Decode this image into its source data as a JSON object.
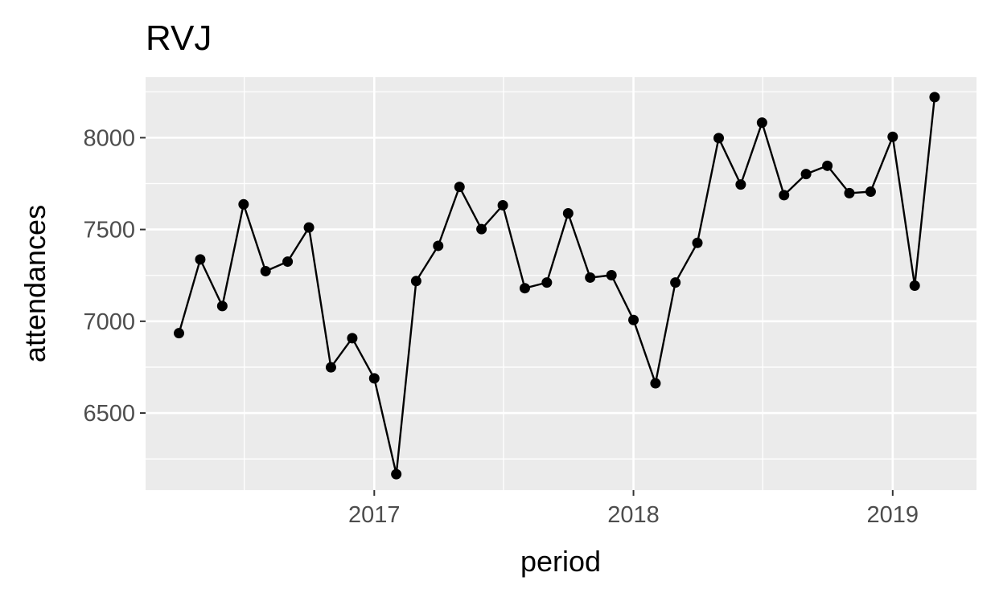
{
  "chart_data": {
    "type": "line",
    "title": "RVJ",
    "xlabel": "period",
    "ylabel": "attendances",
    "x_ticks": [
      "2017",
      "2018",
      "2019"
    ],
    "y_ticks": [
      "6500",
      "7000",
      "7500",
      "8000"
    ],
    "xlim": [
      "2016-02-14",
      "2019-04-29"
    ],
    "ylim": [
      6080,
      8330
    ],
    "grid": true,
    "legend": "none",
    "colors": {
      "panel": "#ebebeb",
      "grid": "#ffffff",
      "line": "#000000",
      "tick_text": "#4d4d4d"
    },
    "series": [
      {
        "points": [
          {
            "x": "2016-04-01",
            "y": 6935
          },
          {
            "x": "2016-05-01",
            "y": 7337
          },
          {
            "x": "2016-06-01",
            "y": 7083
          },
          {
            "x": "2016-07-01",
            "y": 7637
          },
          {
            "x": "2016-08-01",
            "y": 7273
          },
          {
            "x": "2016-09-01",
            "y": 7325
          },
          {
            "x": "2016-10-01",
            "y": 7511
          },
          {
            "x": "2016-11-01",
            "y": 6749
          },
          {
            "x": "2016-12-01",
            "y": 6908
          },
          {
            "x": "2017-01-01",
            "y": 6689
          },
          {
            "x": "2017-02-01",
            "y": 6167
          },
          {
            "x": "2017-03-01",
            "y": 7219
          },
          {
            "x": "2017-04-01",
            "y": 7411
          },
          {
            "x": "2017-05-01",
            "y": 7732
          },
          {
            "x": "2017-06-01",
            "y": 7502
          },
          {
            "x": "2017-07-01",
            "y": 7632
          },
          {
            "x": "2017-08-01",
            "y": 7180
          },
          {
            "x": "2017-09-01",
            "y": 7211
          },
          {
            "x": "2017-10-01",
            "y": 7588
          },
          {
            "x": "2017-11-01",
            "y": 7238
          },
          {
            "x": "2017-12-01",
            "y": 7251
          },
          {
            "x": "2018-01-01",
            "y": 7007
          },
          {
            "x": "2018-02-01",
            "y": 6662
          },
          {
            "x": "2018-03-01",
            "y": 7211
          },
          {
            "x": "2018-04-01",
            "y": 7427
          },
          {
            "x": "2018-05-01",
            "y": 7998
          },
          {
            "x": "2018-06-01",
            "y": 7745
          },
          {
            "x": "2018-07-01",
            "y": 8082
          },
          {
            "x": "2018-08-01",
            "y": 7687
          },
          {
            "x": "2018-09-01",
            "y": 7802
          },
          {
            "x": "2018-10-01",
            "y": 7847
          },
          {
            "x": "2018-11-01",
            "y": 7698
          },
          {
            "x": "2018-12-01",
            "y": 7706
          },
          {
            "x": "2019-01-01",
            "y": 8005
          },
          {
            "x": "2019-02-01",
            "y": 7194
          },
          {
            "x": "2019-03-01",
            "y": 8221
          }
        ]
      }
    ]
  }
}
